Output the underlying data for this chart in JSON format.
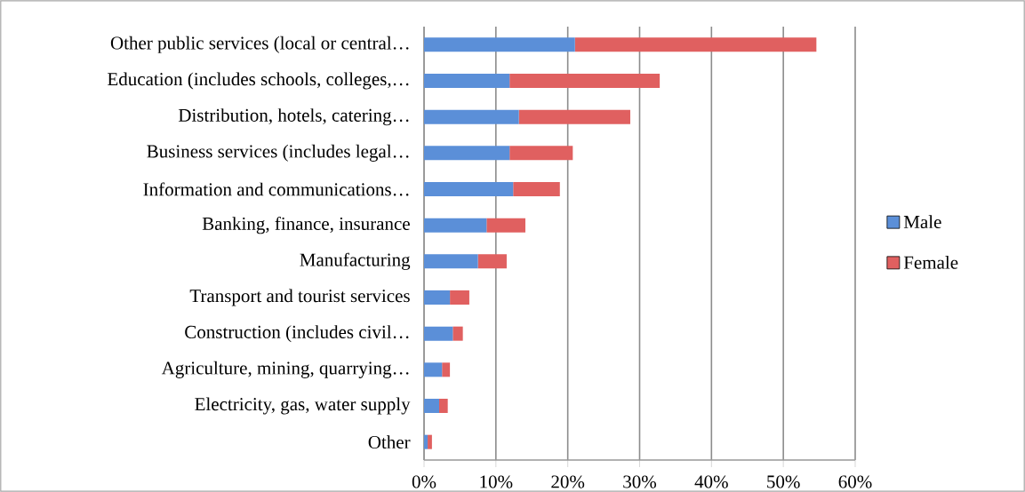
{
  "chart_data": {
    "type": "bar",
    "orientation": "horizontal",
    "stacked": true,
    "grid": "x",
    "legend": "right",
    "categories": [
      "Other public services (local or central…",
      "Education (includes schools, colleges,…",
      "Distribution, hotels, catering…",
      "Business services (includes legal…",
      "Information and communications…",
      "Banking, finance, insurance",
      "Manufacturing",
      "Transport and tourist services",
      "Construction (includes civil…",
      "Agriculture, mining, quarrying…",
      "Electricity, gas, water supply",
      "Other"
    ],
    "series": [
      {
        "name": "Male",
        "color": "#5b8fd8",
        "values": [
          21.0,
          11.9,
          13.2,
          11.9,
          12.4,
          8.7,
          7.5,
          3.6,
          4.0,
          2.5,
          2.1,
          0.5
        ]
      },
      {
        "name": "Female",
        "color": "#e06060",
        "values": [
          33.6,
          20.9,
          15.5,
          8.8,
          6.5,
          5.4,
          4.0,
          2.7,
          1.4,
          1.1,
          1.2,
          0.6
        ]
      }
    ],
    "xlim": [
      0,
      60
    ],
    "xticks": [
      {
        "value": 0,
        "label": "0%"
      },
      {
        "value": 10,
        "label": "10%"
      },
      {
        "value": 20,
        "label": "20%"
      },
      {
        "value": 30,
        "label": "30%"
      },
      {
        "value": 40,
        "label": "40%"
      },
      {
        "value": 50,
        "label": "50%"
      },
      {
        "value": 60,
        "label": "60%"
      }
    ]
  }
}
